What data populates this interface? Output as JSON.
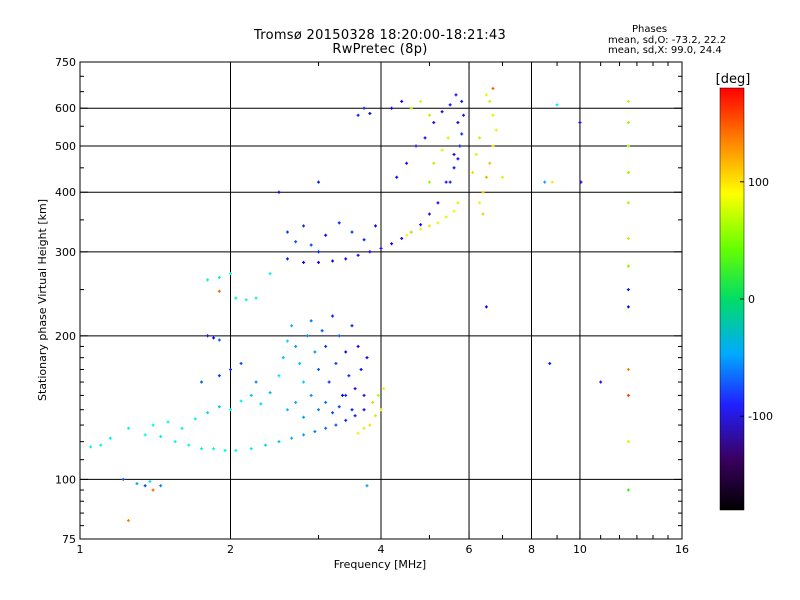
{
  "chart_data": {
    "type": "scatter",
    "title": "Tromsø 20150328 18:20:00-18:21:43",
    "subtitle": "RwPretec (8p)",
    "xlabel": "Frequency [MHz]",
    "ylabel": "Stationary phase Virtual Height [km]",
    "x_scale": "log",
    "y_scale": "log",
    "xlim": [
      1,
      16
    ],
    "ylim": [
      75,
      750
    ],
    "x_ticks": [
      1,
      2,
      4,
      6,
      8,
      10,
      16
    ],
    "x_tick_labels": [
      "1",
      "2",
      "4",
      "6",
      "8",
      "10",
      "16"
    ],
    "x_grid": [
      2,
      4,
      6,
      8,
      10
    ],
    "y_ticks": [
      75,
      100,
      200,
      300,
      400,
      500,
      600,
      750
    ],
    "y_tick_labels": [
      "75",
      "100",
      "200",
      "300",
      "400",
      "500",
      "600",
      "750"
    ],
    "y_grid": [
      100,
      200,
      300,
      400,
      500,
      600
    ],
    "grid": true,
    "color_variable": "phase",
    "colorbar": {
      "label": "[deg]",
      "range": [
        -180,
        180
      ],
      "ticks": [
        100,
        0,
        -100
      ],
      "tick_labels": [
        "100",
        "0",
        "-100"
      ]
    },
    "stats": {
      "header": "Phases",
      "line1": "mean, sd,O: -73.2, 22.2",
      "line2": "mean, sd,X:  99.0, 24.4"
    },
    "series": [
      {
        "name": "O",
        "points": [
          [
            1.05,
            117,
            -35
          ],
          [
            1.1,
            118,
            -30
          ],
          [
            1.15,
            122,
            -40
          ],
          [
            1.22,
            100,
            -80
          ],
          [
            1.3,
            98,
            -60
          ],
          [
            1.35,
            97,
            -90
          ],
          [
            1.38,
            99,
            -40
          ],
          [
            1.25,
            128,
            -30
          ],
          [
            1.35,
            124,
            -35
          ],
          [
            1.45,
            123,
            -30
          ],
          [
            1.55,
            120,
            -32
          ],
          [
            1.65,
            118,
            -28
          ],
          [
            1.75,
            116,
            -30
          ],
          [
            1.85,
            116,
            -32
          ],
          [
            1.95,
            115,
            -30
          ],
          [
            2.05,
            115,
            -35
          ],
          [
            2.2,
            116,
            -40
          ],
          [
            2.35,
            118,
            -45
          ],
          [
            2.5,
            120,
            -50
          ],
          [
            2.65,
            122,
            -55
          ],
          [
            2.8,
            124,
            -60
          ],
          [
            2.95,
            126,
            -70
          ],
          [
            3.1,
            128,
            -75
          ],
          [
            3.25,
            130,
            -85
          ],
          [
            3.4,
            133,
            -95
          ],
          [
            3.55,
            136,
            -100
          ],
          [
            3.7,
            140,
            -115
          ],
          [
            1.4,
            130,
            -30
          ],
          [
            1.5,
            132,
            -32
          ],
          [
            1.6,
            128,
            -40
          ],
          [
            1.7,
            134,
            -38
          ],
          [
            1.8,
            138,
            -45
          ],
          [
            1.9,
            142,
            -50
          ],
          [
            2.0,
            140,
            -35
          ],
          [
            2.1,
            146,
            -40
          ],
          [
            2.2,
            150,
            -50
          ],
          [
            2.3,
            144,
            -45
          ],
          [
            2.4,
            152,
            -55
          ],
          [
            1.75,
            160,
            -80
          ],
          [
            1.9,
            165,
            -90
          ],
          [
            2.0,
            170,
            -95
          ],
          [
            2.1,
            175,
            -85
          ],
          [
            2.25,
            160,
            -70
          ],
          [
            2.5,
            165,
            -40
          ],
          [
            2.55,
            180,
            -50
          ],
          [
            2.6,
            195,
            -45
          ],
          [
            2.65,
            210,
            -55
          ],
          [
            2.7,
            190,
            -60
          ],
          [
            2.75,
            175,
            -50
          ],
          [
            2.8,
            160,
            -45
          ],
          [
            2.85,
            200,
            -70
          ],
          [
            2.9,
            215,
            -75
          ],
          [
            2.95,
            185,
            -65
          ],
          [
            3.0,
            170,
            -80
          ],
          [
            3.05,
            205,
            -85
          ],
          [
            3.1,
            190,
            -90
          ],
          [
            3.15,
            160,
            -95
          ],
          [
            3.2,
            220,
            -100
          ],
          [
            3.25,
            175,
            -90
          ],
          [
            3.3,
            200,
            -80
          ],
          [
            3.35,
            150,
            -105
          ],
          [
            3.4,
            185,
            -110
          ],
          [
            3.45,
            165,
            -95
          ],
          [
            3.5,
            210,
            -100
          ],
          [
            3.55,
            155,
            -120
          ],
          [
            3.6,
            190,
            -115
          ],
          [
            3.65,
            170,
            -105
          ],
          [
            3.7,
            150,
            -125
          ],
          [
            3.75,
            180,
            -110
          ],
          [
            2.6,
            140,
            -50
          ],
          [
            2.7,
            145,
            -55
          ],
          [
            2.8,
            135,
            -60
          ],
          [
            2.9,
            150,
            -65
          ],
          [
            3.0,
            140,
            -70
          ],
          [
            3.1,
            145,
            -75
          ],
          [
            3.2,
            138,
            -85
          ],
          [
            3.3,
            142,
            -90
          ],
          [
            3.4,
            150,
            -95
          ],
          [
            3.5,
            140,
            -100
          ],
          [
            1.8,
            200,
            -120
          ],
          [
            1.85,
            198,
            -110
          ],
          [
            1.9,
            196,
            -80
          ],
          [
            2.05,
            240,
            -20
          ],
          [
            2.15,
            238,
            -25
          ],
          [
            2.25,
            240,
            -30
          ],
          [
            1.8,
            262,
            -20
          ],
          [
            1.9,
            265,
            -25
          ],
          [
            2.0,
            270,
            -30
          ],
          [
            2.4,
            270,
            -35
          ],
          [
            2.6,
            290,
            -100
          ],
          [
            2.8,
            285,
            -110
          ],
          [
            3.0,
            285,
            -115
          ],
          [
            3.2,
            287,
            -110
          ],
          [
            3.4,
            290,
            -115
          ],
          [
            3.6,
            295,
            -112
          ],
          [
            3.8,
            300,
            -115
          ],
          [
            4.0,
            305,
            -120
          ],
          [
            4.2,
            312,
            -115
          ],
          [
            4.4,
            320,
            -118
          ],
          [
            4.6,
            330,
            -120
          ],
          [
            4.8,
            342,
            -120
          ],
          [
            5.0,
            360,
            -120
          ],
          [
            5.2,
            380,
            -115
          ],
          [
            5.4,
            420,
            -120
          ],
          [
            5.6,
            480,
            -115
          ],
          [
            5.7,
            560,
            -110
          ],
          [
            5.8,
            620,
            -100
          ],
          [
            2.6,
            330,
            -90
          ],
          [
            2.7,
            315,
            -85
          ],
          [
            2.8,
            340,
            -95
          ],
          [
            2.9,
            310,
            -90
          ],
          [
            3.0,
            300,
            -100
          ],
          [
            3.1,
            325,
            -105
          ],
          [
            3.3,
            345,
            -100
          ],
          [
            3.5,
            330,
            -95
          ],
          [
            3.7,
            318,
            -100
          ],
          [
            3.9,
            340,
            -110
          ],
          [
            2.5,
            400,
            -110
          ],
          [
            3.0,
            420,
            -100
          ],
          [
            3.6,
            580,
            -100
          ],
          [
            3.7,
            600,
            -95
          ],
          [
            3.8,
            585,
            -110
          ],
          [
            4.2,
            600,
            -110
          ],
          [
            4.4,
            620,
            -115
          ],
          [
            4.3,
            430,
            -110
          ],
          [
            4.5,
            460,
            -120
          ],
          [
            4.7,
            500,
            -125
          ],
          [
            4.9,
            520,
            -115
          ],
          [
            5.1,
            560,
            -120
          ],
          [
            5.3,
            590,
            -110
          ],
          [
            5.5,
            610,
            -115
          ],
          [
            5.65,
            640,
            -120
          ],
          [
            5.5,
            420,
            -100
          ],
          [
            5.6,
            450,
            -105
          ],
          [
            5.7,
            470,
            -110
          ],
          [
            5.75,
            500,
            -100
          ],
          [
            5.8,
            530,
            -95
          ],
          [
            5.85,
            580,
            -100
          ],
          [
            6.5,
            230,
            -110
          ],
          [
            8.7,
            175,
            -100
          ],
          [
            10.0,
            560,
            -115
          ],
          [
            10.05,
            420,
            -125
          ],
          [
            11.0,
            160,
            -120
          ],
          [
            12.5,
            230,
            -105
          ],
          [
            12.5,
            250,
            -100
          ],
          [
            3.75,
            97,
            -60
          ],
          [
            1.45,
            97,
            -70
          ],
          [
            9.0,
            610,
            -40
          ],
          [
            8.5,
            420,
            -60
          ]
        ]
      },
      {
        "name": "X",
        "points": [
          [
            3.6,
            125,
            110
          ],
          [
            3.7,
            128,
            100
          ],
          [
            3.8,
            130,
            115
          ],
          [
            3.9,
            136,
            95
          ],
          [
            4.0,
            140,
            105
          ],
          [
            3.85,
            145,
            120
          ],
          [
            3.95,
            150,
            90
          ],
          [
            4.05,
            155,
            110
          ],
          [
            4.5,
            325,
            110
          ],
          [
            4.6,
            330,
            100
          ],
          [
            4.8,
            335,
            105
          ],
          [
            5.0,
            340,
            115
          ],
          [
            5.2,
            345,
            110
          ],
          [
            5.4,
            355,
            100
          ],
          [
            5.6,
            365,
            108
          ],
          [
            5.7,
            380,
            112
          ],
          [
            5.0,
            420,
            80
          ],
          [
            5.1,
            460,
            90
          ],
          [
            5.3,
            490,
            100
          ],
          [
            5.45,
            520,
            95
          ],
          [
            6.3,
            380,
            110
          ],
          [
            6.4,
            400,
            120
          ],
          [
            6.5,
            430,
            130
          ],
          [
            6.6,
            460,
            125
          ],
          [
            6.7,
            500,
            115
          ],
          [
            6.8,
            540,
            110
          ],
          [
            6.7,
            580,
            100
          ],
          [
            6.6,
            620,
            95
          ],
          [
            6.5,
            640,
            105
          ],
          [
            6.3,
            520,
            90
          ],
          [
            6.2,
            480,
            100
          ],
          [
            6.1,
            440,
            115
          ],
          [
            6.4,
            360,
            120
          ],
          [
            4.6,
            600,
            95
          ],
          [
            4.8,
            620,
            105
          ],
          [
            5.0,
            580,
            90
          ],
          [
            12.5,
            620,
            90
          ],
          [
            12.5,
            560,
            80
          ],
          [
            12.5,
            500,
            85
          ],
          [
            12.5,
            440,
            80
          ],
          [
            12.5,
            380,
            85
          ],
          [
            12.5,
            320,
            90
          ],
          [
            12.5,
            280,
            75
          ],
          [
            12.5,
            120,
            100
          ],
          [
            12.5,
            95,
            50
          ],
          [
            12.5,
            170,
            140
          ],
          [
            12.5,
            150,
            160
          ],
          [
            1.25,
            82,
            140
          ],
          [
            1.4,
            95,
            150
          ],
          [
            1.9,
            248,
            150
          ],
          [
            7.0,
            430,
            100
          ],
          [
            8.8,
            420,
            100
          ],
          [
            6.7,
            660,
            150
          ]
        ]
      }
    ]
  }
}
